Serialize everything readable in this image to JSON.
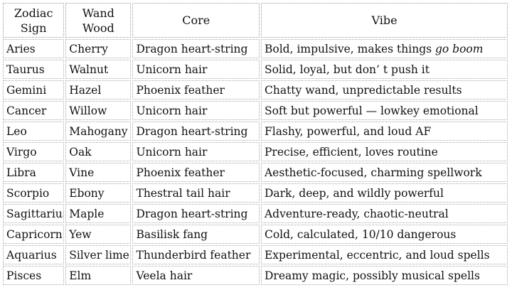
{
  "headers": {
    "sign": "Zodiac Sign",
    "wood": "Wand Wood",
    "core": "Core",
    "vibe": "Vibe"
  },
  "rows": [
    {
      "sign": "Aries",
      "wood": "Cherry",
      "core": "Dragon heart-string",
      "vibe": "Bold, impulsive, makes things ",
      "vibe_em": "go boom"
    },
    {
      "sign": "Taurus",
      "wood": "Walnut",
      "core": "Unicorn hair",
      "vibe": "Solid, loyal, but don’ t push it",
      "vibe_em": ""
    },
    {
      "sign": "Gemini",
      "wood": "Hazel",
      "core": "Phoenix feather",
      "vibe": "Chatty wand, unpredictable results",
      "vibe_em": ""
    },
    {
      "sign": "Cancer",
      "wood": "Willow",
      "core": "Unicorn hair",
      "vibe": "Soft but powerful — lowkey emotional",
      "vibe_em": ""
    },
    {
      "sign": "Leo",
      "wood": "Mahogany",
      "core": "Dragon heart-string",
      "vibe": "Flashy, powerful, and loud AF",
      "vibe_em": ""
    },
    {
      "sign": "Virgo",
      "wood": "Oak",
      "core": "Unicorn hair",
      "vibe": "Precise, efficient, loves routine",
      "vibe_em": ""
    },
    {
      "sign": "Libra",
      "wood": "Vine",
      "core": "Phoenix feather",
      "vibe": "Aesthetic-focused, charming spellwork",
      "vibe_em": ""
    },
    {
      "sign": "Scorpio",
      "wood": "Ebony",
      "core": "Thestral tail hair",
      "vibe": "Dark, deep, and wildly powerful",
      "vibe_em": ""
    },
    {
      "sign": "Sagittarius",
      "wood": "Maple",
      "core": "Dragon heart-string",
      "vibe": "Adventure-ready, chaotic-neutral",
      "vibe_em": ""
    },
    {
      "sign": "Capricorn",
      "wood": "Yew",
      "core": "Basilisk fang",
      "vibe": "Cold, calculated, 10/10 dangerous",
      "vibe_em": ""
    },
    {
      "sign": "Aquarius",
      "wood": "Silver lime",
      "core": "Thunderbird feather",
      "vibe": "Experimental, eccentric, and loud spells",
      "vibe_em": ""
    },
    {
      "sign": "Pisces",
      "wood": "Elm",
      "core": "Veela hair",
      "vibe": "Dreamy magic, possibly musical spells",
      "vibe_em": ""
    }
  ]
}
